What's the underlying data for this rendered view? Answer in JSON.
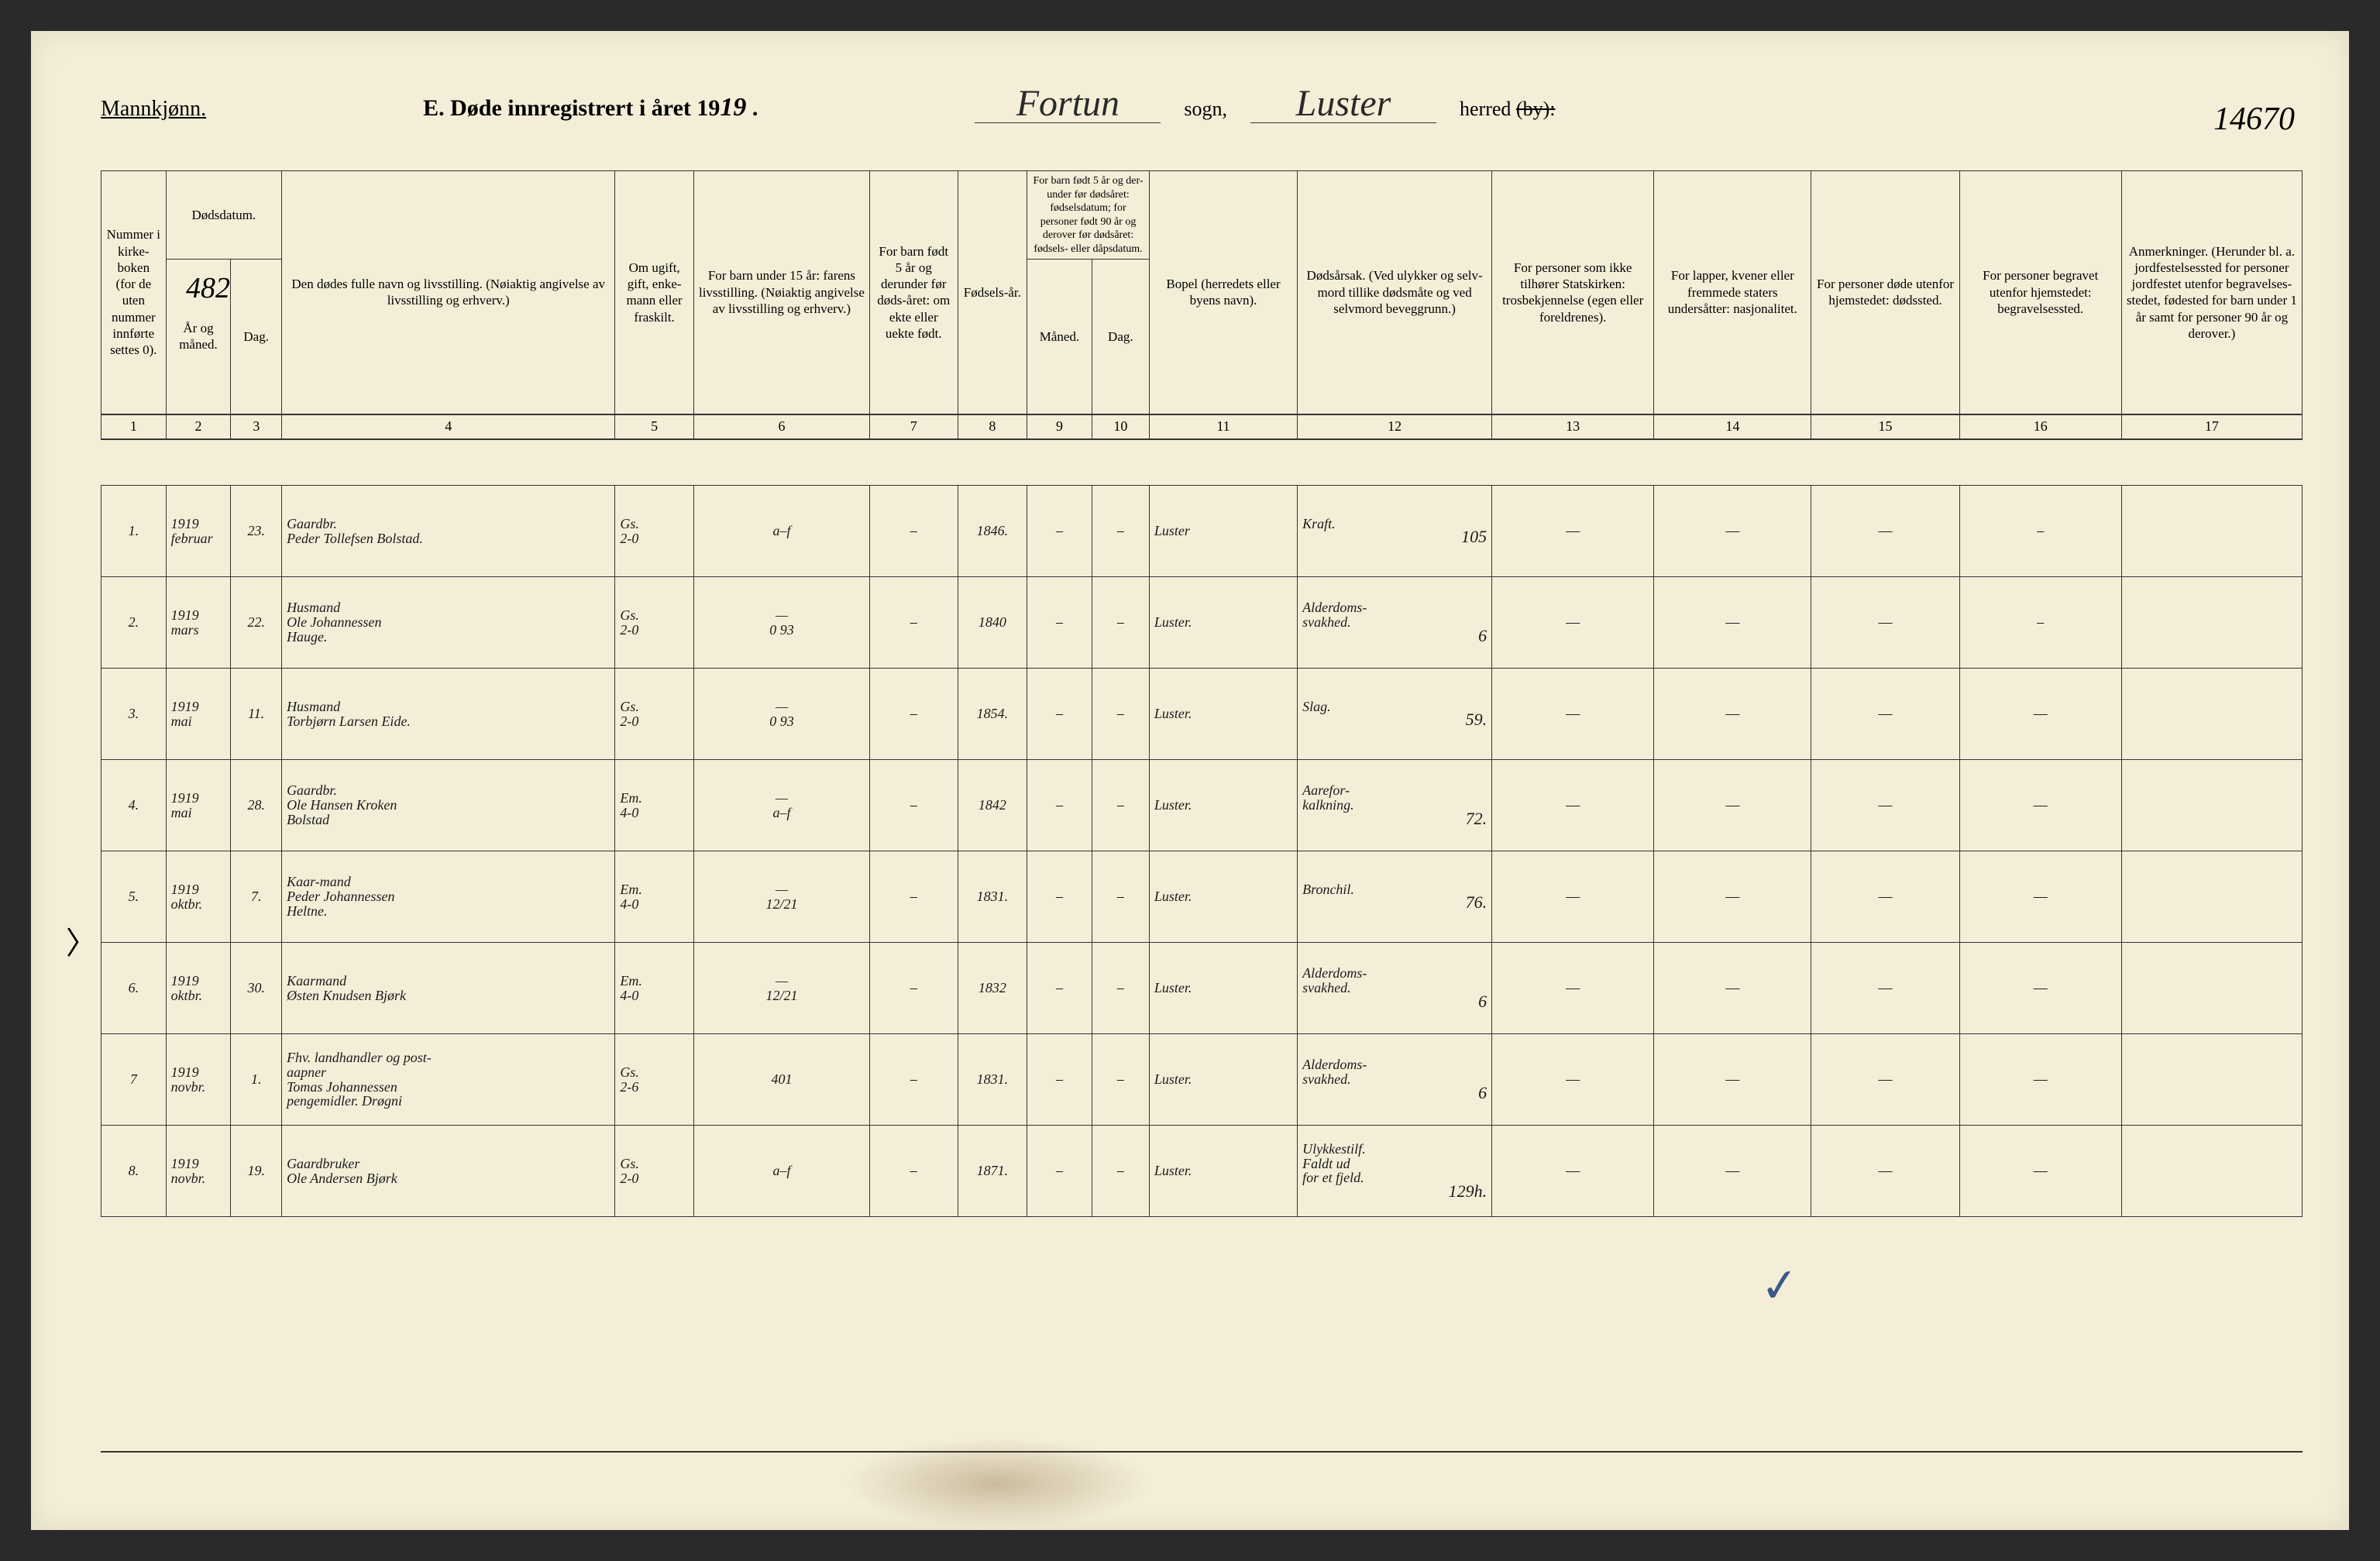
{
  "header": {
    "gender": "Mannkjønn.",
    "title_prefix": "E.  Døde innregistrert i året 19",
    "year_suffix": "19",
    "sogn_value": "Fortun",
    "sogn_label": "sogn,",
    "herred_value": "Luster",
    "herred_label": "herred",
    "herred_struck": "(by):",
    "page_number": "14670",
    "extra_number": "482"
  },
  "columns": {
    "c1": "Nummer i kirke-boken (for de uten nummer innførte settes 0).",
    "c2a": "Dødsdatum.",
    "c2b": "År og måned.",
    "c3": "Dag.",
    "c4": "Den dødes fulle navn og livsstilling. (Nøiaktig angivelse av livsstilling og erhverv.)",
    "c5": "Om ugift, gift, enke-mann eller fraskilt.",
    "c6": "For barn under 15 år: farens livsstilling. (Nøiaktig angivelse av livsstilling og erhverv.)",
    "c7": "For barn født 5 år og derunder før døds-året: om ekte eller uekte født.",
    "c8": "Fødsels-år.",
    "c9_10_top": "For barn født 5 år og der-under før dødsåret: fødselsdatum; for personer født 90 år og derover før dødsåret: fødsels- eller dåpsdatum.",
    "c9": "Måned.",
    "c10": "Dag.",
    "c11": "Bopel (herredets eller byens navn).",
    "c12": "Dødsårsak. (Ved ulykker og selv-mord tillike dødsmåte og ved selvmord beveggrunn.)",
    "c13": "For personer som ikke tilhører Statskirken: trosbekjennelse (egen eller foreldrenes).",
    "c14": "For lapper, kvener eller fremmede staters undersåtter: nasjonalitet.",
    "c15": "For personer døde utenfor hjemstedet: dødssted.",
    "c16": "For personer begravet utenfor hjemstedet: begravelsessted.",
    "c17": "Anmerkninger. (Herunder bl. a. jordfestelsessted for personer jordfestet utenfor begravelses-stedet, fødested for barn under 1 år samt for personer 90 år og derover.)"
  },
  "colnums": [
    "1",
    "2",
    "3",
    "4",
    "5",
    "6",
    "7",
    "8",
    "9",
    "10",
    "11",
    "12",
    "13",
    "14",
    "15",
    "16",
    "17"
  ],
  "rows": [
    {
      "n": "1.",
      "year": "1919",
      "month": "februar",
      "day": "23.",
      "name": "Gaardbr.\nPeder Tollefsen Bolstad.",
      "status": "Gs.\n2-0",
      "col6": "a–f",
      "col7": "–",
      "birth": "1846.",
      "c9": "–",
      "c10": "–",
      "bopel": "Luster",
      "cause": "Kraft.",
      "cause_note": "105",
      "c13": "—",
      "c14": "—",
      "c15": "—",
      "c16": "–",
      "c17": ""
    },
    {
      "n": "2.",
      "year": "1919",
      "month": "mars",
      "day": "22.",
      "name": "Husmand\nOle Johannessen\n          Hauge.",
      "status": "Gs.\n2-0",
      "col6": "—\n0 93",
      "col7": "–",
      "birth": "1840",
      "c9": "–",
      "c10": "–",
      "bopel": "Luster.",
      "cause": "Alderdoms-\nsvakhed.",
      "cause_note": "6",
      "c13": "—",
      "c14": "—",
      "c15": "—",
      "c16": "–",
      "c17": ""
    },
    {
      "n": "3.",
      "year": "1919",
      "month": "mai",
      "day": "11.",
      "name": "Husmand\nTorbjørn Larsen Eide.",
      "status": "Gs.\n2-0",
      "col6": "—\n0 93",
      "col7": "–",
      "birth": "1854.",
      "c9": "–",
      "c10": "–",
      "bopel": "Luster.",
      "cause": "Slag.",
      "cause_note": "59.",
      "c13": "—",
      "c14": "—",
      "c15": "—",
      "c16": "—",
      "c17": ""
    },
    {
      "n": "4.",
      "year": "1919",
      "month": "mai",
      "day": "28.",
      "name": "Gaardbr.\nOle Hansen Kroken\n          Bolstad",
      "status": "Em.\n4-0",
      "col6": "—\na–f",
      "col7": "–",
      "birth": "1842",
      "c9": "–",
      "c10": "–",
      "bopel": "Luster.",
      "cause": "Aarefor-\nkalkning.",
      "cause_note": "72.",
      "c13": "—",
      "c14": "—",
      "c15": "—",
      "c16": "—",
      "c17": ""
    },
    {
      "n": "5.",
      "year": "1919",
      "month": "oktbr.",
      "day": "7.",
      "name": "Kaar-mand\nPeder Johannessen\n          Heltne.",
      "status": "Em.\n4-0",
      "col6": "—\n12/21",
      "col7": "–",
      "birth": "1831.",
      "c9": "–",
      "c10": "–",
      "bopel": "Luster.",
      "cause": "Bronchil.",
      "cause_note": "76.",
      "c13": "—",
      "c14": "—",
      "c15": "—",
      "c16": "—",
      "c17": ""
    },
    {
      "n": "6.",
      "year": "1919",
      "month": "oktbr.",
      "day": "30.",
      "name": "Kaarmand\nØsten Knudsen Bjørk",
      "status": "Em.\n4-0",
      "col6": "—\n12/21",
      "col7": "–",
      "birth": "1832",
      "c9": "–",
      "c10": "–",
      "bopel": "Luster.",
      "cause": "Alderdoms-\nsvakhed.",
      "cause_note": "6",
      "c13": "—",
      "c14": "—",
      "c15": "—",
      "c16": "—",
      "c17": ""
    },
    {
      "n": "7",
      "year": "1919",
      "month": "novbr.",
      "day": "1.",
      "name": "Fhv. landhandler og post-\naapner\nTomas Johannessen\npengemidler.    Drøgni",
      "status": "Gs.\n2-6",
      "col6": "401",
      "col7": "–",
      "birth": "1831.",
      "c9": "–",
      "c10": "–",
      "bopel": "Luster.",
      "cause": "Alderdoms-\nsvakhed.",
      "cause_note": "6",
      "c13": "—",
      "c14": "—",
      "c15": "—",
      "c16": "—",
      "c17": ""
    },
    {
      "n": "8.",
      "year": "1919",
      "month": "novbr.",
      "day": "19.",
      "name": "Gaardbruker\nOle Andersen Bjørk",
      "status": "Gs.\n2-0",
      "col6": "a–f",
      "col7": "–",
      "birth": "1871.",
      "c9": "–",
      "c10": "–",
      "bopel": "Luster.",
      "cause": "Ulykkestilf.\nFaldt ud\nfor et fjeld.",
      "cause_note": "129h.",
      "c13": "—",
      "c14": "—",
      "c15": "—",
      "c16": "—",
      "c17": ""
    }
  ]
}
